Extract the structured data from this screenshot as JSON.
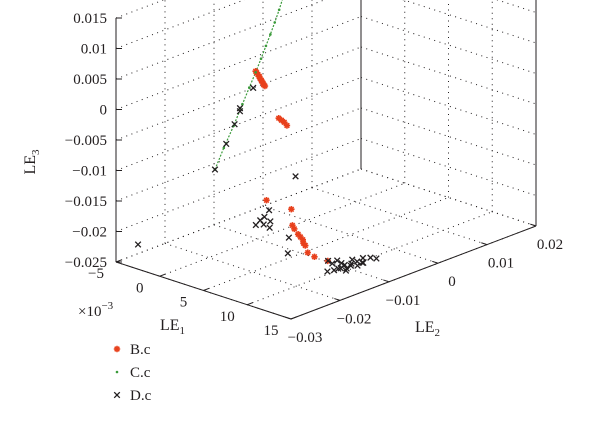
{
  "chart_data": {
    "type": "scatter",
    "dimensions": 3,
    "xlabel": "LE",
    "xlabel_sub": "1",
    "ylabel": "LE",
    "ylabel_sub": "2",
    "zlabel": "LE",
    "zlabel_sub": "3",
    "x_multiplier_text": "×10",
    "x_multiplier_exp": "−3",
    "xlim": [
      -5,
      15
    ],
    "ylim": [
      -0.03,
      0.02
    ],
    "zlim": [
      -0.025,
      0.015
    ],
    "x_ticks": [
      "−5",
      "0",
      "5",
      "10",
      "15"
    ],
    "x_tick_values": [
      -5,
      0,
      5,
      10,
      15
    ],
    "y_ticks": [
      "−0.03",
      "−0.02",
      "−0.01",
      "0",
      "0.01",
      "0.02"
    ],
    "y_tick_values": [
      -0.03,
      -0.02,
      -0.01,
      0,
      0.01,
      0.02
    ],
    "z_ticks": [
      "0.015",
      "0.01",
      "0.005",
      "0",
      "−0.005",
      "−0.01",
      "−0.015",
      "−0.02",
      "−0.025"
    ],
    "z_tick_values": [
      0.015,
      0.01,
      0.005,
      0,
      -0.005,
      -0.01,
      -0.015,
      -0.02,
      -0.025
    ],
    "grid": true,
    "legend_position": "bottom-left",
    "series": [
      {
        "name": "B.c",
        "marker": "asterisk",
        "color": "#e8401c",
        "points": [
          [
            4.8,
            -0.019,
            0.0075
          ],
          [
            4.8,
            -0.0188,
            0.0072
          ],
          [
            4.9,
            -0.0187,
            0.0069
          ],
          [
            5.0,
            -0.0186,
            0.0066
          ],
          [
            5.0,
            -0.0185,
            0.0063
          ],
          [
            5.1,
            -0.0184,
            0.006
          ],
          [
            5.1,
            -0.0183,
            0.0058
          ],
          [
            5.2,
            -0.0182,
            0.0055
          ],
          [
            5.2,
            -0.0181,
            0.0052
          ],
          [
            5.3,
            -0.018,
            0.005
          ],
          [
            8.0,
            -0.02,
            0.0016
          ],
          [
            8.2,
            -0.0198,
            0.0013
          ],
          [
            8.4,
            -0.0196,
            0.001
          ],
          [
            8.6,
            -0.0194,
            0.0005
          ],
          [
            6.6,
            -0.02,
            -0.0125
          ],
          [
            8.6,
            -0.0185,
            -0.0135
          ],
          [
            9.0,
            -0.019,
            -0.0158
          ],
          [
            9.5,
            -0.0195,
            -0.016
          ],
          [
            10.1,
            -0.0198,
            -0.0165
          ],
          [
            10.2,
            -0.0195,
            -0.017
          ],
          [
            10.6,
            -0.0196,
            -0.0178
          ],
          [
            10.7,
            -0.0194,
            -0.0182
          ],
          [
            10.3,
            -0.0192,
            -0.0175
          ],
          [
            11.2,
            -0.0198,
            -0.019
          ],
          [
            11.8,
            -0.0195,
            -0.0195
          ],
          [
            12.2,
            -0.0175,
            -0.0206
          ]
        ]
      },
      {
        "name": "C.c",
        "marker": "dot",
        "color": "#3a9a3a",
        "points": [
          [
            -5,
            -0.0098,
            -0.016
          ],
          [
            -5,
            -0.008,
            -0.013
          ],
          [
            -5,
            -0.006,
            -0.01
          ],
          [
            -5,
            -0.0042,
            -0.007
          ],
          [
            -5,
            -0.0028,
            -0.0047
          ],
          [
            -5,
            -0.0015,
            -0.0026
          ],
          [
            -5,
            -0.0004,
            -0.0007
          ],
          [
            -5,
            0.0006,
            0.0011
          ],
          [
            -5,
            0.0015,
            0.0027
          ],
          [
            -5,
            0.0024,
            0.0044
          ],
          [
            -5,
            0.0033,
            0.0062
          ],
          [
            -5,
            0.0041,
            0.008
          ],
          [
            -5,
            0.0049,
            0.01
          ],
          [
            -5,
            0.0054,
            0.0116
          ],
          [
            -5,
            0.0057,
            0.0126
          ],
          [
            -5,
            0.0058,
            0.0134
          ]
        ]
      },
      {
        "name": "D.c",
        "marker": "x",
        "color": "#231f20",
        "points": [
          [
            -5,
            -0.0098,
            -0.016
          ],
          [
            -5,
            -0.0075,
            -0.0125
          ],
          [
            -5,
            -0.0047,
            -0.008
          ],
          [
            -5,
            -0.0047,
            -0.0075
          ],
          [
            -5,
            -0.0058,
            -0.0098
          ],
          [
            -5,
            -0.002,
            -0.005
          ],
          [
            -5,
            -0.0255,
            -0.0235
          ],
          [
            7.0,
            -0.022,
            -0.015
          ],
          [
            7.4,
            -0.022,
            -0.0155
          ],
          [
            7.6,
            -0.021,
            -0.0152
          ],
          [
            6.5,
            -0.022,
            -0.016
          ],
          [
            7.2,
            -0.0215,
            -0.0145
          ],
          [
            6.9,
            -0.02,
            -0.014
          ],
          [
            7.8,
            -0.0215,
            -0.016
          ],
          [
            9.6,
            -0.021,
            -0.0195
          ],
          [
            8.6,
            -0.019,
            -0.018
          ],
          [
            6.0,
            -0.013,
            -0.011
          ],
          [
            13.0,
            -0.019,
            -0.0215
          ],
          [
            13.2,
            -0.018,
            -0.0215
          ],
          [
            13.4,
            -0.017,
            -0.0214
          ],
          [
            13.3,
            -0.016,
            -0.0212
          ],
          [
            13.5,
            -0.015,
            -0.0212
          ],
          [
            13.6,
            -0.014,
            -0.0211
          ],
          [
            13.4,
            -0.0175,
            -0.0213
          ],
          [
            13.8,
            -0.0165,
            -0.0214
          ],
          [
            14.0,
            -0.017,
            -0.0215
          ],
          [
            13.0,
            -0.018,
            -0.0205
          ],
          [
            13.2,
            -0.0165,
            -0.0208
          ],
          [
            13.6,
            -0.015,
            -0.0205
          ],
          [
            14.0,
            -0.016,
            -0.021
          ],
          [
            14.2,
            -0.015,
            -0.0212
          ],
          [
            12.8,
            -0.0185,
            -0.02
          ],
          [
            13.0,
            -0.017,
            -0.0203
          ],
          [
            14.3,
            -0.014,
            -0.021
          ],
          [
            13.7,
            -0.013,
            -0.0208
          ],
          [
            14.0,
            -0.012,
            -0.0209
          ],
          [
            14.4,
            -0.0115,
            -0.021
          ],
          [
            13.9,
            -0.0135,
            -0.0213
          ]
        ]
      }
    ]
  }
}
